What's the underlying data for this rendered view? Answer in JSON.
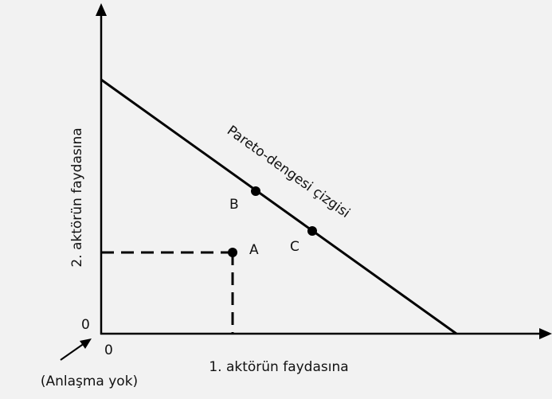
{
  "axes": {
    "y_label": "2. aktörün faydasına",
    "x_label": "1. aktörün faydasına",
    "y_origin": "0",
    "x_origin": "0"
  },
  "curve_label": "Pareto-dengesi çizgisi",
  "points": [
    {
      "label": "A"
    },
    {
      "label": "B"
    },
    {
      "label": "C"
    }
  ],
  "note": "(Anlaşma yok)"
}
